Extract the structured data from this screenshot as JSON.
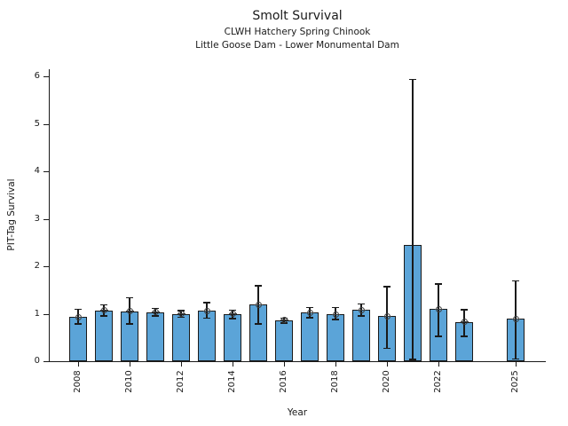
{
  "chart_data": {
    "type": "bar",
    "title": "Smolt Survival",
    "subtitle1": "CLWH Hatchery Spring Chinook",
    "subtitle2": "Little Goose Dam - Lower Monumental Dam",
    "xlabel": "Year",
    "ylabel": "PIT-Tag Survival",
    "ylim": [
      0,
      6.2
    ],
    "yticks": [
      0,
      1,
      2,
      3,
      4,
      5,
      6
    ],
    "xtick_labels": [
      "2008",
      "2010",
      "2012",
      "2014",
      "2016",
      "2018",
      "2020",
      "2022",
      "2025"
    ],
    "grid": false,
    "legend": "none",
    "bar_color": "#5ba4d8",
    "bar_edge_color": "#1a1a1a",
    "points": [
      {
        "year": 2008,
        "value": 0.93,
        "ci_low": 0.78,
        "ci_high": 1.11,
        "marker": 0.93
      },
      {
        "year": 2009,
        "value": 1.07,
        "ci_low": 0.95,
        "ci_high": 1.2,
        "marker": 1.07
      },
      {
        "year": 2010,
        "value": 1.05,
        "ci_low": 0.78,
        "ci_high": 1.35,
        "marker": 1.05
      },
      {
        "year": 2011,
        "value": 1.03,
        "ci_low": 0.95,
        "ci_high": 1.12,
        "marker": 1.03
      },
      {
        "year": 2012,
        "value": 1.0,
        "ci_low": 0.92,
        "ci_high": 1.08,
        "marker": 1.0
      },
      {
        "year": 2013,
        "value": 1.06,
        "ci_low": 0.9,
        "ci_high": 1.25,
        "marker": 1.06
      },
      {
        "year": 2014,
        "value": 1.0,
        "ci_low": 0.89,
        "ci_high": 1.09,
        "marker": 1.0
      },
      {
        "year": 2015,
        "value": 1.19,
        "ci_low": 0.78,
        "ci_high": 1.6,
        "marker": 1.19
      },
      {
        "year": 2016,
        "value": 0.86,
        "ci_low": 0.8,
        "ci_high": 0.92,
        "marker": 0.86
      },
      {
        "year": 2017,
        "value": 1.02,
        "ci_low": 0.91,
        "ci_high": 1.14,
        "marker": 1.02
      },
      {
        "year": 2018,
        "value": 0.99,
        "ci_low": 0.87,
        "ci_high": 1.14,
        "marker": 0.99
      },
      {
        "year": 2019,
        "value": 1.08,
        "ci_low": 0.95,
        "ci_high": 1.22,
        "marker": 1.08
      },
      {
        "year": 2020,
        "value": 0.95,
        "ci_low": 0.27,
        "ci_high": 1.58,
        "marker": 0.95
      },
      {
        "year": 2021,
        "value": 2.45,
        "ci_low": 0.03,
        "ci_high": 5.95,
        "marker": null
      },
      {
        "year": 2022,
        "value": 1.1,
        "ci_low": 0.52,
        "ci_high": 1.64,
        "marker": 1.1
      },
      {
        "year": 2023,
        "value": 0.83,
        "ci_low": 0.52,
        "ci_high": 1.1,
        "marker": 0.83
      },
      {
        "year": 2025,
        "value": 0.89,
        "ci_low": 0.04,
        "ci_high": 1.71,
        "marker": 0.89
      }
    ]
  }
}
